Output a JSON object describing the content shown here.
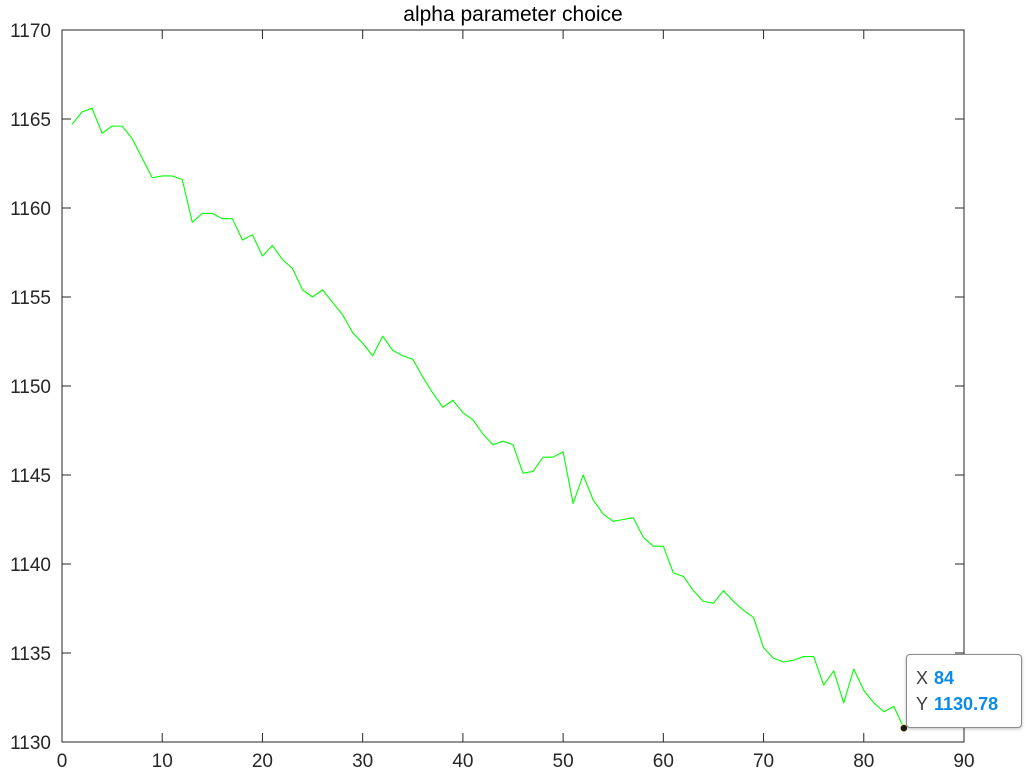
{
  "chart_data": {
    "type": "line",
    "title": "alpha parameter choice",
    "xlabel": "",
    "ylabel": "",
    "xlim": [
      0,
      90
    ],
    "ylim": [
      1130,
      1170
    ],
    "xticks": [
      0,
      10,
      20,
      30,
      40,
      50,
      60,
      70,
      80,
      90
    ],
    "yticks": [
      1130,
      1135,
      1140,
      1145,
      1150,
      1155,
      1160,
      1165,
      1170
    ],
    "xtick_labels": [
      "0",
      "10",
      "20",
      "30",
      "40",
      "50",
      "60",
      "70",
      "80",
      "90"
    ],
    "ytick_labels": [
      "1130",
      "1135",
      "1140",
      "1145",
      "1150",
      "1155",
      "1160",
      "1165",
      "1170"
    ],
    "grid": false,
    "box": true,
    "series": [
      {
        "color": "#00ff00",
        "x": [
          1,
          2,
          3,
          4,
          5,
          6,
          7,
          8,
          9,
          10,
          11,
          12,
          13,
          14,
          15,
          16,
          17,
          18,
          19,
          20,
          21,
          22,
          23,
          24,
          25,
          26,
          27,
          28,
          29,
          30,
          31,
          32,
          33,
          34,
          35,
          36,
          37,
          38,
          39,
          40,
          41,
          42,
          43,
          44,
          45,
          46,
          47,
          48,
          49,
          50,
          51,
          52,
          53,
          54,
          55,
          56,
          57,
          58,
          59,
          60,
          61,
          62,
          63,
          64,
          65,
          66,
          67,
          68,
          69,
          70,
          71,
          72,
          73,
          74,
          75,
          76,
          77,
          78,
          79,
          80,
          81,
          82,
          83,
          84
        ],
        "y": [
          1164.7,
          1165.4,
          1165.6,
          1164.2,
          1164.6,
          1164.6,
          1163.9,
          1162.8,
          1161.7,
          1161.8,
          1161.8,
          1161.6,
          1159.2,
          1159.7,
          1159.7,
          1159.4,
          1159.4,
          1158.2,
          1158.5,
          1157.3,
          1157.9,
          1157.1,
          1156.6,
          1155.4,
          1155.0,
          1155.4,
          1154.7,
          1154.0,
          1153.0,
          1152.4,
          1151.7,
          1152.8,
          1152.0,
          1151.7,
          1151.5,
          1150.5,
          1149.6,
          1148.8,
          1149.2,
          1148.5,
          1148.1,
          1147.3,
          1146.7,
          1146.9,
          1146.7,
          1145.1,
          1145.2,
          1146.0,
          1146.0,
          1146.3,
          1143.4,
          1145.0,
          1143.6,
          1142.8,
          1142.4,
          1142.5,
          1142.6,
          1141.5,
          1141.0,
          1141.0,
          1139.5,
          1139.3,
          1138.5,
          1137.9,
          1137.8,
          1138.5,
          1137.9,
          1137.4,
          1137.0,
          1135.3,
          1134.7,
          1134.5,
          1134.6,
          1134.8,
          1134.8,
          1133.2,
          1134.0,
          1132.2,
          1134.1,
          1132.9,
          1132.2,
          1131.7,
          1132.0,
          1130.78
        ]
      }
    ],
    "marker": {
      "x": 84,
      "y": 1130.78
    }
  },
  "datatip": {
    "x_key": "X",
    "x_value": "84",
    "y_key": "Y",
    "y_value": "1130.78",
    "value_color": "#0a8bec"
  },
  "colors": {
    "axis": "#262626",
    "line": "#00ff00",
    "marker": "#1a1a1a"
  }
}
